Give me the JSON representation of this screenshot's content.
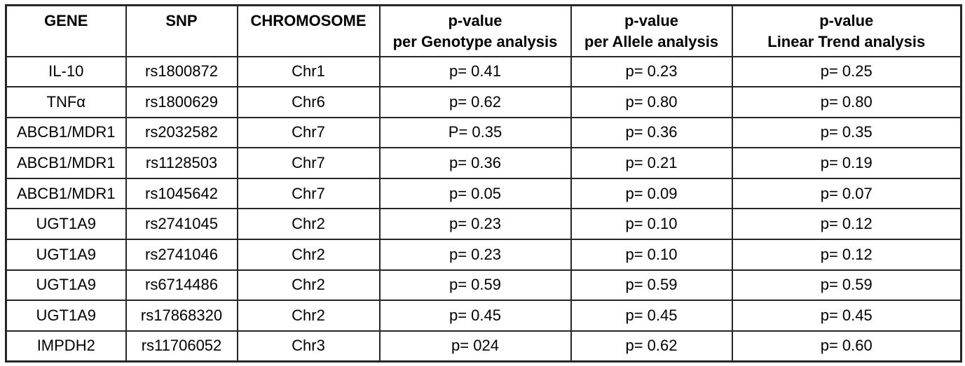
{
  "table": {
    "columns": [
      {
        "label": "GENE",
        "sublabel": ""
      },
      {
        "label": "SNP",
        "sublabel": ""
      },
      {
        "label": "CHROMOSOME",
        "sublabel": ""
      },
      {
        "label": "p-value",
        "sublabel": "per Genotype analysis"
      },
      {
        "label": "p-value",
        "sublabel": "per Allele analysis"
      },
      {
        "label": "p-value",
        "sublabel": "Linear Trend analysis"
      }
    ],
    "rows": [
      {
        "gene": "IL-10",
        "snp": "rs1800872",
        "chromosome": "Chr1",
        "p_genotype": "p= 0.41",
        "p_allele": "p= 0.23",
        "p_linear_trend": "p= 0.25"
      },
      {
        "gene": "TNFα",
        "snp": "rs1800629",
        "chromosome": "Chr6",
        "p_genotype": "p= 0.62",
        "p_allele": "p= 0.80",
        "p_linear_trend": "p= 0.80"
      },
      {
        "gene": "ABCB1/MDR1",
        "snp": "rs2032582",
        "chromosome": "Chr7",
        "p_genotype": "P= 0.35",
        "p_allele": "p= 0.36",
        "p_linear_trend": "p= 0.35"
      },
      {
        "gene": "ABCB1/MDR1",
        "snp": "rs1128503",
        "chromosome": "Chr7",
        "p_genotype": "p= 0.36",
        "p_allele": "p= 0.21",
        "p_linear_trend": "p= 0.19"
      },
      {
        "gene": "ABCB1/MDR1",
        "snp": "rs1045642",
        "chromosome": "Chr7",
        "p_genotype": "p= 0.05",
        "p_allele": "p= 0.09",
        "p_linear_trend": "p= 0.07"
      },
      {
        "gene": "UGT1A9",
        "snp": "rs2741045",
        "chromosome": "Chr2",
        "p_genotype": "p= 0.23",
        "p_allele": "p= 0.10",
        "p_linear_trend": "p= 0.12"
      },
      {
        "gene": "UGT1A9",
        "snp": "rs2741046",
        "chromosome": "Chr2",
        "p_genotype": "p= 0.23",
        "p_allele": "p= 0.10",
        "p_linear_trend": "p= 0.12"
      },
      {
        "gene": "UGT1A9",
        "snp": "rs6714486",
        "chromosome": "Chr2",
        "p_genotype": "p= 0.59",
        "p_allele": "p= 0.59",
        "p_linear_trend": "p= 0.59"
      },
      {
        "gene": "UGT1A9",
        "snp": "rs17868320",
        "chromosome": "Chr2",
        "p_genotype": "p= 0.45",
        "p_allele": "p= 0.45",
        "p_linear_trend": "p= 0.45"
      },
      {
        "gene": "IMPDH2",
        "snp": "rs11706052",
        "chromosome": "Chr3",
        "p_genotype": "p= 024",
        "p_allele": "p= 0.62",
        "p_linear_trend": "p= 0.60"
      }
    ]
  },
  "colors": {
    "border": "#262626",
    "text": "#000000",
    "background": "#ffffff"
  }
}
